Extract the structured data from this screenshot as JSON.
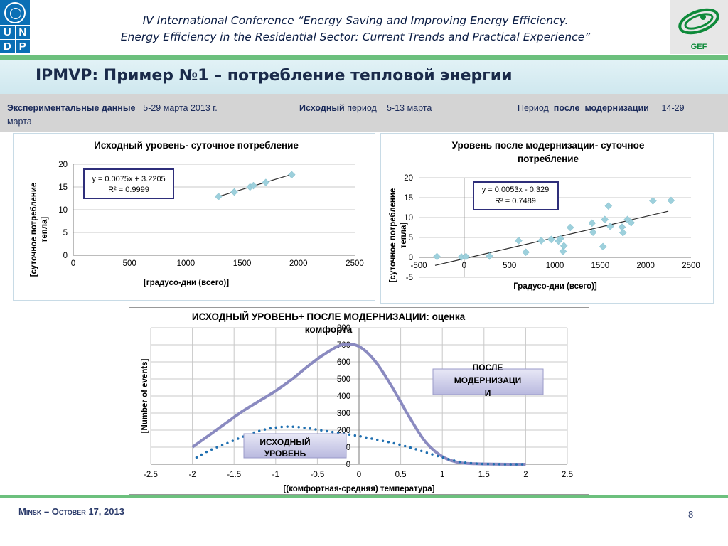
{
  "header": {
    "undp_letters": [
      "U",
      "N",
      "D",
      "P"
    ],
    "conference_line1": "IV International Conference “Energy Saving and Improving Energy Efficiency.",
    "conference_line2": "Energy Efficiency in the Residential Sector: Current Trends and Practical Experience”",
    "gef_label": "GEF"
  },
  "title": "IPMVP: Пример №1 – потребление тепловой энергии",
  "info": {
    "exp_bold": "Экспериментальные данные",
    "exp_rest": "= 5-29 марта 2013 г.",
    "base_bold": "Исходный",
    "base_rest": " период = 5-13 марта",
    "post_pre": "Период",
    "post_bold1": "после",
    "post_bold2": "модернизации",
    "post_rest": "=  14-29",
    "post_wrap": "марта"
  },
  "chart_data": [
    {
      "type": "scatter",
      "title": "Исходный уровень- суточное потребление",
      "xlabel": "[градусо-дни (всего)]",
      "ylabel_lines": [
        "[суточное потребление",
        "тепла]"
      ],
      "xlim": [
        0,
        2500
      ],
      "ylim": [
        0,
        20
      ],
      "xticks": [
        0,
        500,
        1000,
        1500,
        2000,
        2500
      ],
      "yticks": [
        0,
        5,
        10,
        15,
        20
      ],
      "trendline": {
        "slope": 0.0075,
        "intercept": 3.2205,
        "x_range": [
          1280,
          1940
        ]
      },
      "equation": "y = 0.0075x + 3.2205",
      "r2": "R² = 0.9999",
      "points": [
        [
          1290,
          12.9
        ],
        [
          1430,
          13.9
        ],
        [
          1570,
          15.0
        ],
        [
          1600,
          15.3
        ],
        [
          1710,
          16.0
        ],
        [
          1940,
          17.7
        ]
      ],
      "marker_color": "#9dd0dc",
      "line_color": "#2a2a2a"
    },
    {
      "type": "scatter",
      "title_lines": [
        "Уровень после модернизации- суточное",
        "потребление"
      ],
      "xlabel": "Градусо-дни (всего)]",
      "ylabel_lines": [
        "[суточное потребление",
        "тепла]"
      ],
      "xlim": [
        -500,
        2500
      ],
      "ylim": [
        -5,
        20
      ],
      "xticks": [
        -500,
        0,
        500,
        1000,
        1500,
        2000,
        2500
      ],
      "yticks": [
        -5,
        0,
        5,
        10,
        15,
        20
      ],
      "trendline": {
        "slope": 0.0053,
        "intercept": -0.329,
        "x_range": [
          -320,
          2250
        ]
      },
      "equation": "y = 0.0053x - 0.329",
      "r2": "R² = 0.7489",
      "points": [
        [
          -300,
          0.2
        ],
        [
          -30,
          0.1
        ],
        [
          20,
          0.2
        ],
        [
          280,
          0.3
        ],
        [
          600,
          4.2
        ],
        [
          680,
          1.3
        ],
        [
          850,
          4.2
        ],
        [
          960,
          4.5
        ],
        [
          1040,
          4.1
        ],
        [
          1060,
          4.7
        ],
        [
          1090,
          1.5
        ],
        [
          1100,
          2.9
        ],
        [
          1170,
          7.5
        ],
        [
          1410,
          8.6
        ],
        [
          1420,
          6.3
        ],
        [
          1530,
          2.7
        ],
        [
          1550,
          9.5
        ],
        [
          1590,
          12.9
        ],
        [
          1610,
          7.8
        ],
        [
          1740,
          7.6
        ],
        [
          1750,
          6.2
        ],
        [
          1800,
          9.5
        ],
        [
          1840,
          8.7
        ],
        [
          2080,
          14.2
        ],
        [
          2280,
          14.3
        ]
      ],
      "marker_color": "#9dd0dc",
      "line_color": "#2a2a2a"
    },
    {
      "type": "line",
      "title_lines": [
        "ИСХОДНЫЙ УРОВЕНЬ+ ПОСЛЕ МОДЕРНИЗАЦИИ: оценка",
        "комфорта"
      ],
      "xlabel": "[(комфортная-средняя) температура]",
      "ylabel": "[Number of events]",
      "xlim": [
        -2.5,
        2.5
      ],
      "ylim": [
        0,
        800
      ],
      "xticks": [
        "-2.5",
        "-2",
        "-1.5",
        "-1",
        "-0.5",
        "0",
        "0.5",
        "1",
        "1.5",
        "2",
        "2.5"
      ],
      "yticks": [
        "0",
        "100",
        "200",
        "300",
        "400",
        "500",
        "600",
        "700",
        "800"
      ],
      "series": [
        {
          "color": "#8a8ac0",
          "style": "solid",
          "x": [
            -2.0,
            -1.8,
            -1.6,
            -1.4,
            -1.2,
            -1.0,
            -0.8,
            -0.6,
            -0.4,
            -0.2,
            0.0,
            0.2,
            0.4,
            0.6,
            0.8,
            1.0,
            1.2,
            1.4,
            1.6,
            1.8,
            2.0
          ],
          "values": [
            100,
            170,
            240,
            310,
            370,
            430,
            500,
            580,
            650,
            700,
            690,
            600,
            450,
            280,
            130,
            45,
            10,
            3,
            1,
            0,
            0
          ]
        },
        {
          "color": "#1f6fb0",
          "style": "dotted",
          "x": [
            -1.95,
            -1.8,
            -1.6,
            -1.4,
            -1.2,
            -1.0,
            -0.8,
            -0.6,
            -0.4,
            -0.2,
            0.0,
            0.2,
            0.4,
            0.6,
            0.8,
            1.0,
            1.2,
            1.4,
            1.6,
            1.8,
            2.0
          ],
          "values": [
            40,
            80,
            120,
            160,
            195,
            215,
            220,
            210,
            195,
            180,
            165,
            145,
            125,
            100,
            70,
            40,
            15,
            4,
            1,
            0,
            0
          ]
        }
      ],
      "callouts": {
        "post_lines": [
          "ПОСЛЕ",
          "МОДЕРНИЗАЦИ",
          "И"
        ],
        "base_lines": [
          "ИСХОДНЫЙ",
          "УРОВЕНЬ"
        ]
      }
    }
  ],
  "footer": {
    "left": "Minsk – October 17, 2013",
    "page": "8"
  }
}
